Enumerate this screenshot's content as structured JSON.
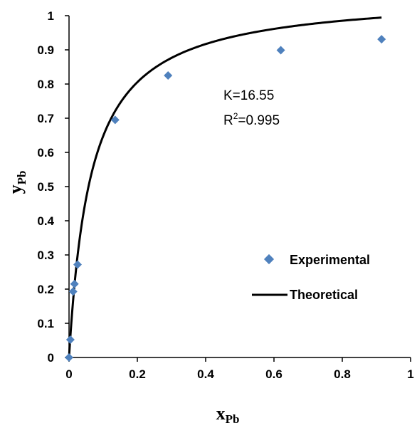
{
  "chart_data": {
    "type": "scatter",
    "xlabel": {
      "main": "x",
      "sub": "Pb"
    },
    "ylabel": {
      "main": "y",
      "sub": "Pb"
    },
    "xlim": [
      0,
      1
    ],
    "ylim": [
      0,
      1
    ],
    "xticks": [
      "0",
      "0.2",
      "0.4",
      "0.6",
      "0.8",
      "1"
    ],
    "yticks": [
      "0",
      "0.1",
      "0.2",
      "0.3",
      "0.4",
      "0.5",
      "0.6",
      "0.7",
      "0.8",
      "0.9",
      "1"
    ],
    "grid": false,
    "annotation": {
      "line1": "K=16.55",
      "line2_prefix": "R",
      "line2_sup": "2",
      "line2_suffix": "=0.995"
    },
    "legend_position": "right",
    "series": [
      {
        "name": "Experimental",
        "kind": "markers",
        "marker": "diamond",
        "color": "#4f81bd",
        "points": [
          [
            0.0,
            0.0
          ],
          [
            0.004,
            0.052
          ],
          [
            0.012,
            0.193
          ],
          [
            0.016,
            0.215
          ],
          [
            0.025,
            0.272
          ],
          [
            0.135,
            0.695
          ],
          [
            0.29,
            0.825
          ],
          [
            0.62,
            0.899
          ],
          [
            0.915,
            0.931
          ]
        ]
      },
      {
        "name": "Theoretical",
        "kind": "line",
        "color": "#000000",
        "K": 16.55,
        "x_range": [
          0,
          0.915
        ]
      }
    ]
  }
}
